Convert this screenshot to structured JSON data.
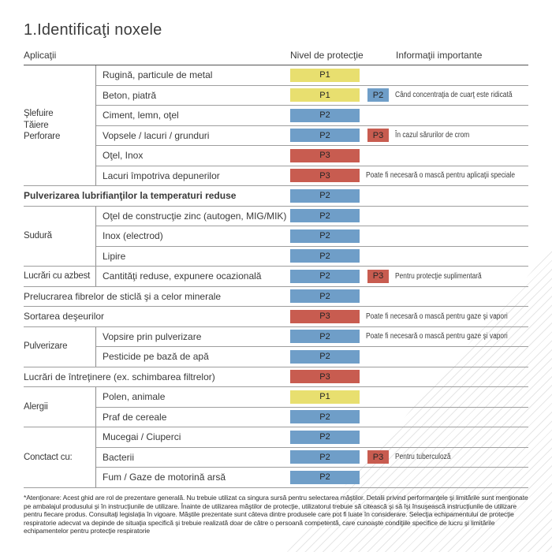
{
  "title": "1.Identificaţi noxele",
  "columns": {
    "applications": "Aplicaţii",
    "protection": "Nivel de protecţie",
    "info": "Informaţii importante"
  },
  "level_colors": {
    "P1": "#e8df6f",
    "P2": "#6f9ec8",
    "P3": "#c85c50"
  },
  "sections": [
    {
      "category": "Şlefuire\nTăiere\nPerforare",
      "items": [
        {
          "label": "Rugină, particule de metal",
          "level": "P1"
        },
        {
          "label": "Beton, piatră",
          "level": "P1",
          "level2": "P2",
          "info": "Când concentraţia de cuarţ este ridicată"
        },
        {
          "label": "Ciment, lemn, oţel",
          "level": "P2"
        },
        {
          "label": "Vopsele / lacuri / grunduri",
          "level": "P2",
          "level2": "P3",
          "info": "În cazul sărurilor de crom"
        },
        {
          "label": "Oţel, Inox",
          "level": "P3"
        },
        {
          "label": "Lacuri împotriva depunerilor",
          "level": "P3",
          "info": "Poate fi necesară o mască pentru aplicaţii speciale"
        }
      ]
    },
    {
      "full": true,
      "bold": true,
      "label": "Pulverizarea lubrifianţilor la temperaturi reduse",
      "level": "P2"
    },
    {
      "category": "Sudură",
      "items": [
        {
          "label": "Oţel de construcţie zinc (autogen, MIG/MIK)",
          "level": "P2"
        },
        {
          "label": "Inox (electrod)",
          "level": "P2"
        },
        {
          "label": "Lipire",
          "level": "P2"
        }
      ]
    },
    {
      "category": "Lucrări cu azbest",
      "items": [
        {
          "label": "Cantităţi reduse, expunere ocazională",
          "level": "P2",
          "level2": "P3",
          "info": "Pentru protecţie suplimentară"
        }
      ]
    },
    {
      "full": true,
      "label": "Prelucrarea fibrelor de sticlă şi a celor minerale",
      "level": "P2"
    },
    {
      "full": true,
      "label": "Sortarea deşeurilor",
      "level": "P3",
      "info": "Poate fi necesară o mască pentru gaze şi vapori"
    },
    {
      "category": "Pulverizare",
      "items": [
        {
          "label": "Vopsire prin pulverizare",
          "level": "P2",
          "info": "Poate fi necesară o mască pentru gaze şi vapori"
        },
        {
          "label": "Pesticide pe bază de apă",
          "level": "P2"
        }
      ]
    },
    {
      "full": true,
      "label": "Lucrări de întreţinere (ex. schimbarea filtrelor)",
      "level": "P3"
    },
    {
      "category": "Alergii",
      "items": [
        {
          "label": "Polen, animale",
          "level": "P1"
        },
        {
          "label": "Praf de cereale",
          "level": "P2"
        }
      ]
    },
    {
      "category": "Conctact cu:",
      "items": [
        {
          "label": "Mucegai / Ciuperci",
          "level": "P2"
        },
        {
          "label": "Bacterii",
          "level": "P2",
          "level2": "P3",
          "info": "Pentru tuberculoză"
        },
        {
          "label": "Fum / Gaze de motorină arsă",
          "level": "P2"
        }
      ]
    }
  ],
  "footnote": "*Atenţionare: Acest ghid are rol de prezentare generală. Nu trebuie utilizat ca singura sursă pentru selectarea măştilor. Detalii privind performanţele şi limitările sunt menţionate pe ambalajul produsului şi în instrucţiunile de utilizare. Înainte de utilizarea măştilor de protecţie, utilizatorul trebuie să citească şi să îşi însuşească instrucţiunile de utilizare pentru fiecare produs. Consultaţi legislaţia în vigoare. Măştile prezentate sunt câteva dintre produsele care pot fi luate în considerare. Selecţia echipamentului de protecţie respiratorie adecvat va depinde de situaţia specifică şi trebuie realizată doar de către o persoană competentă, care cunoaşte condiţiile specifice de lucru şi limitările echipamentelor pentru protecţie respiratorie"
}
